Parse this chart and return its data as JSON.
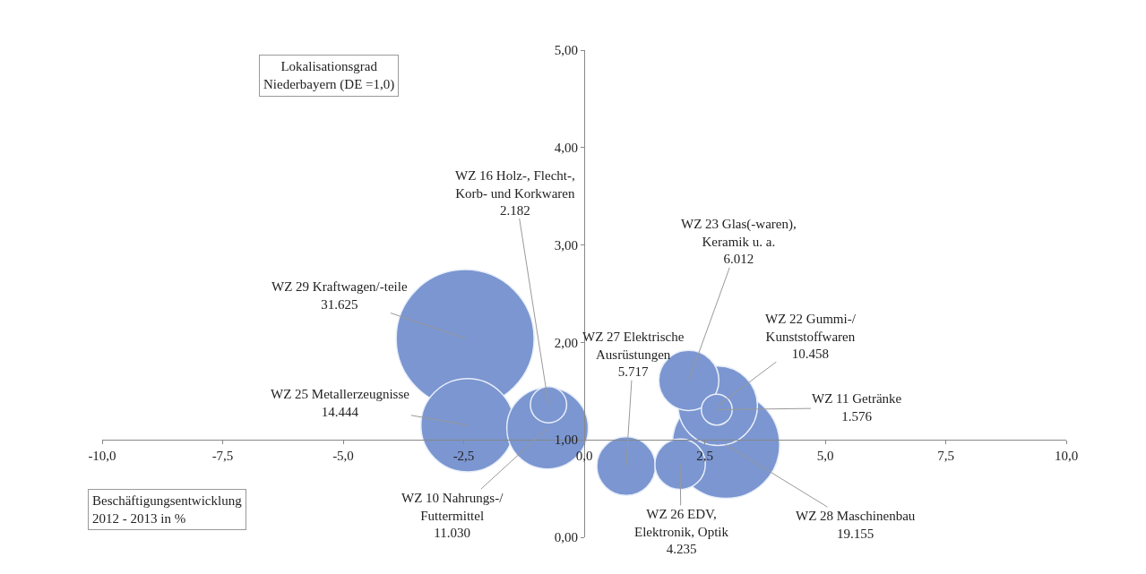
{
  "chart_data": {
    "type": "bubble",
    "xlabel": "Beschäftigungsentwicklung\n2012 - 2013 in %",
    "ylabel": "Lokalisationsgrad\nNiederbayern (DE =1,0)",
    "x": [
      -2.47,
      -2.42,
      -0.74,
      -0.76,
      0.87,
      1.99,
      2.17,
      2.77,
      2.75,
      2.94
    ],
    "values": [
      2.04,
      1.15,
      1.36,
      1.12,
      0.73,
      0.75,
      1.61,
      1.35,
      1.31,
      0.95
    ],
    "sizes": [
      1,
      0.457,
      0.069,
      0.349,
      0.181,
      0.134,
      0.19,
      0.331,
      0.05,
      0.606
    ],
    "color": "#7b96d0",
    "xlim": [
      -10,
      10
    ],
    "ylim": [
      0,
      5
    ],
    "xticks": [
      {
        "value": -10,
        "label": "-10,0"
      },
      {
        "value": -7.5,
        "label": "-7,5"
      },
      {
        "value": -5,
        "label": "-5,0"
      },
      {
        "value": -2.5,
        "label": "-2,5"
      },
      {
        "value": 0,
        "label": "0,0"
      },
      {
        "value": 2.5,
        "label": "2,5"
      },
      {
        "value": 5,
        "label": "5,0"
      },
      {
        "value": 7.5,
        "label": "7,5"
      },
      {
        "value": 10,
        "label": "10,0"
      }
    ],
    "yticks": [
      {
        "value": 0,
        "label": "0,00"
      },
      {
        "value": 1,
        "label": "1,00"
      },
      {
        "value": 2,
        "label": "2,00"
      },
      {
        "value": 3,
        "label": "3,00"
      },
      {
        "value": 4,
        "label": "4,00"
      },
      {
        "value": 5,
        "label": "5,00"
      }
    ],
    "annotations": [
      {
        "text": "WZ 29 Kraftwagen/-teile\n31.625",
        "x": -2.47,
        "y": 2.04
      },
      {
        "text": "WZ 25 Metallerzeugnisse\n14.444",
        "x": -2.42,
        "y": 1.15
      },
      {
        "text": "WZ 16 Holz-, Flecht-,\nKorb- und Korkwaren\n2.182",
        "x": -0.74,
        "y": 1.36
      },
      {
        "text": "WZ 10 Nahrungs-/\nFuttermittel\n11.030",
        "x": -0.76,
        "y": 1.12
      },
      {
        "text": "WZ 27 Elektrische\nAusrüstungen\n5.717",
        "x": 0.87,
        "y": 0.73
      },
      {
        "text": "WZ 26 EDV,\nElektronik, Optik\n4.235",
        "x": 1.99,
        "y": 0.75
      },
      {
        "text": "WZ 23 Glas(-waren),\nKeramik u. a.\n6.012",
        "x": 2.17,
        "y": 1.61
      },
      {
        "text": "WZ 22 Gummi-/\nKunststoffwaren\n10.458",
        "x": 2.77,
        "y": 1.35
      },
      {
        "text": "WZ 11 Getränke\n1.576",
        "x": 2.75,
        "y": 1.31
      },
      {
        "text": "WZ 28 Maschinenbau\n19.155",
        "x": 2.94,
        "y": 0.95
      }
    ]
  }
}
